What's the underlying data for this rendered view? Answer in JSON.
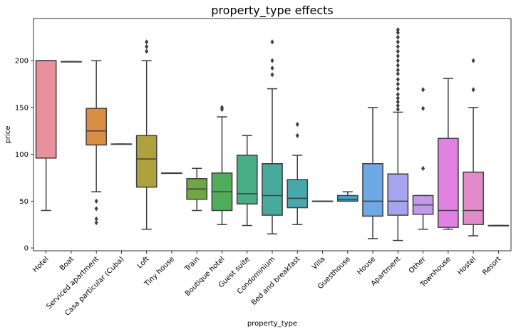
{
  "chart_data": {
    "type": "box",
    "title": "property_type effects",
    "xlabel": "property_type",
    "ylabel": "price",
    "ylim": [
      -3,
      245
    ],
    "yticks": [
      0,
      50,
      100,
      150,
      200
    ],
    "categories": [
      {
        "name": "Hotel",
        "color": "#e8919c",
        "q1": 96,
        "median": 200,
        "q3": 200,
        "whisker_low": 40,
        "whisker_high": 200,
        "outliers": []
      },
      {
        "name": "Boat",
        "color": "#e0967a",
        "q1": 199,
        "median": 199,
        "q3": 199,
        "whisker_low": 199,
        "whisker_high": 199,
        "outliers": []
      },
      {
        "name": "Serviced apartment",
        "color": "#d98e44",
        "q1": 110,
        "median": 125,
        "q3": 149,
        "whisker_low": 60,
        "whisker_high": 200,
        "outliers": [
          50,
          42,
          31,
          27
        ]
      },
      {
        "name": "Casa particular (Cuba)",
        "color": "#c29a47",
        "q1": 111,
        "median": 111,
        "q3": 111,
        "whisker_low": 111,
        "whisker_high": 111,
        "outliers": []
      },
      {
        "name": "Loft",
        "color": "#aea23f",
        "q1": 65,
        "median": 95,
        "q3": 120,
        "whisker_low": 20,
        "whisker_high": 200,
        "outliers": [
          210,
          215,
          220
        ]
      },
      {
        "name": "Tiny house",
        "color": "#8fa63f",
        "q1": 80,
        "median": 80,
        "q3": 80,
        "whisker_low": 80,
        "whisker_high": 80,
        "outliers": []
      },
      {
        "name": "Train",
        "color": "#6fa747",
        "q1": 52,
        "median": 63,
        "q3": 74,
        "whisker_low": 40,
        "whisker_high": 85,
        "outliers": []
      },
      {
        "name": "Boutique hotel",
        "color": "#4fad5c",
        "q1": 40,
        "median": 60,
        "q3": 80,
        "whisker_low": 25,
        "whisker_high": 140,
        "outliers": [
          148,
          150
        ]
      },
      {
        "name": "Guest suite",
        "color": "#49ad86",
        "q1": 47,
        "median": 58,
        "q3": 99,
        "whisker_low": 24,
        "whisker_high": 120,
        "outliers": []
      },
      {
        "name": "Condominium",
        "color": "#47aa9a",
        "q1": 35,
        "median": 56,
        "q3": 90,
        "whisker_low": 15,
        "whisker_high": 170,
        "outliers": [
          185,
          192,
          200,
          220
        ]
      },
      {
        "name": "Bed and breakfast",
        "color": "#48a8ab",
        "q1": 43,
        "median": 53,
        "q3": 73,
        "whisker_low": 25,
        "whisker_high": 99,
        "outliers": [
          120,
          132
        ]
      },
      {
        "name": "Villa",
        "color": "#45a6b9",
        "q1": 50,
        "median": 50,
        "q3": 50,
        "whisker_low": 50,
        "whisker_high": 50,
        "outliers": []
      },
      {
        "name": "Guesthouse",
        "color": "#3fa5c9",
        "q1": 50,
        "median": 52,
        "q3": 56,
        "whisker_low": 50,
        "whisker_high": 60,
        "outliers": []
      },
      {
        "name": "House",
        "color": "#6fa8e6",
        "q1": 34,
        "median": 50,
        "q3": 90,
        "whisker_low": 10,
        "whisker_high": 150,
        "outliers": []
      },
      {
        "name": "Apartment",
        "color": "#a7a4ee",
        "q1": 35,
        "median": 50,
        "q3": 79,
        "whisker_low": 8,
        "whisker_high": 145,
        "outliers": [
          148,
          152,
          156,
          160,
          164,
          170,
          175,
          180,
          186,
          190,
          195,
          200,
          205,
          210,
          215,
          220,
          225,
          230,
          233
        ]
      },
      {
        "name": "Other",
        "color": "#c39ae9",
        "q1": 36,
        "median": 46,
        "q3": 56,
        "whisker_low": 20,
        "whisker_high": 56,
        "outliers": [
          85,
          149,
          169
        ]
      },
      {
        "name": "Townhouse",
        "color": "#e082e0",
        "q1": 22,
        "median": 40,
        "q3": 117,
        "whisker_low": 20,
        "whisker_high": 181,
        "outliers": []
      },
      {
        "name": "Hostel",
        "color": "#e38bc9",
        "q1": 25,
        "median": 40,
        "q3": 81,
        "whisker_low": 13,
        "whisker_high": 150,
        "outliers": [
          169,
          200
        ]
      },
      {
        "name": "Resort",
        "color": "#e68fb5",
        "q1": 24,
        "median": 24,
        "q3": 24,
        "whisker_low": 24,
        "whisker_high": 24,
        "outliers": []
      }
    ],
    "grid": false,
    "legend": "none"
  }
}
